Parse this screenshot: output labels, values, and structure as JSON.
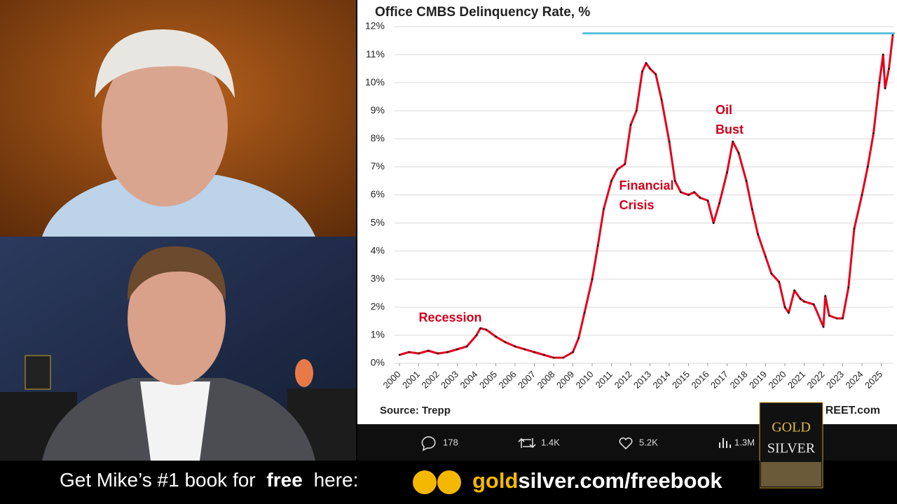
{
  "chart_data": {
    "type": "line",
    "title": "Office CMBS Delinquency Rate, %",
    "source": "Source: Trepp",
    "watermark": "REET.com",
    "annotations": [
      {
        "lines": [
          "Recession"
        ],
        "x": 2001.0,
        "y": 1.6
      },
      {
        "lines": [
          "Financial",
          "Crisis"
        ],
        "x": 2011.4,
        "y": 6.3
      },
      {
        "lines": [
          "Oil",
          "Bust"
        ],
        "x": 2016.4,
        "y": 9.0
      }
    ],
    "x": [
      2000.0,
      2000.5,
      2001.0,
      2001.5,
      2002.0,
      2002.5,
      2003.0,
      2003.5,
      2004.0,
      2004.2,
      2004.5,
      2005.0,
      2005.5,
      2006.0,
      2006.5,
      2007.0,
      2007.5,
      2008.0,
      2008.5,
      2009.0,
      2009.3,
      2009.6,
      2010.0,
      2010.3,
      2010.6,
      2011.0,
      2011.3,
      2011.7,
      2012.0,
      2012.3,
      2012.6,
      2012.8,
      2013.0,
      2013.3,
      2013.6,
      2014.0,
      2014.3,
      2014.6,
      2015.0,
      2015.3,
      2015.6,
      2016.0,
      2016.3,
      2016.6,
      2017.0,
      2017.3,
      2017.6,
      2018.0,
      2018.3,
      2018.6,
      2019.0,
      2019.3,
      2019.7,
      2020.0,
      2020.2,
      2020.5,
      2020.8,
      2021.0,
      2021.5,
      2022.0,
      2022.1,
      2022.3,
      2022.7,
      2023.0,
      2023.3,
      2023.6,
      2024.0,
      2024.3,
      2024.6,
      2024.9,
      2025.1,
      2025.2,
      2025.4,
      2025.6
    ],
    "series": [
      {
        "name": "Office CMBS Delinquency Rate",
        "color": "#e3001b",
        "values": [
          0.3,
          0.4,
          0.35,
          0.45,
          0.35,
          0.4,
          0.5,
          0.6,
          1.0,
          1.25,
          1.2,
          0.95,
          0.75,
          0.6,
          0.5,
          0.4,
          0.3,
          0.2,
          0.2,
          0.4,
          0.9,
          1.8,
          3.0,
          4.2,
          5.5,
          6.5,
          6.9,
          7.1,
          8.5,
          9.0,
          10.4,
          10.7,
          10.5,
          10.3,
          9.4,
          7.9,
          6.5,
          6.1,
          6.0,
          6.1,
          5.9,
          5.8,
          5.0,
          5.7,
          6.8,
          7.9,
          7.5,
          6.5,
          5.5,
          4.6,
          3.8,
          3.2,
          2.9,
          2.0,
          1.8,
          2.6,
          2.3,
          2.2,
          2.1,
          1.3,
          2.4,
          1.7,
          1.6,
          1.6,
          2.7,
          4.8,
          6.0,
          7.0,
          8.2,
          10.0,
          11.0,
          9.8,
          10.5,
          11.7
        ]
      }
    ],
    "reference_line": {
      "value": 11.76,
      "x_start": 2009.5,
      "color": "#5bc0de"
    },
    "xlim": [
      2000,
      2025.7
    ],
    "xticks": [
      2000,
      2001,
      2002,
      2003,
      2004,
      2005,
      2006,
      2007,
      2008,
      2009,
      2010,
      2011,
      2012,
      2013,
      2014,
      2015,
      2016,
      2017,
      2018,
      2019,
      2020,
      2021,
      2022,
      2023,
      2024,
      2025
    ],
    "ylim": [
      0,
      12
    ],
    "yticks": [
      {
        "value": 0,
        "label": "0%"
      },
      {
        "value": 1,
        "label": "1%"
      },
      {
        "value": 2,
        "label": "2%"
      },
      {
        "value": 3,
        "label": "3%"
      },
      {
        "value": 4,
        "label": "4%"
      },
      {
        "value": 5,
        "label": "5%"
      },
      {
        "value": 6,
        "label": "6%"
      },
      {
        "value": 7,
        "label": "7%"
      },
      {
        "value": 8,
        "label": "8%"
      },
      {
        "value": 9,
        "label": "9%"
      },
      {
        "value": 10,
        "label": "10%"
      },
      {
        "value": 11,
        "label": "11%"
      },
      {
        "value": 12,
        "label": "12%"
      }
    ],
    "grid": true
  },
  "stats": {
    "replies": "178",
    "reposts": "1.4K",
    "likes": "5.2K",
    "views": "1.3M"
  },
  "banner": {
    "lead": "Get Mike’s #1 book for",
    "emphasis": "free",
    "tail": "here:",
    "url_gold": "gold",
    "url_rest": "silver.com/freebook"
  },
  "book": {
    "line1": "GOLD",
    "line2": "SILVER"
  }
}
